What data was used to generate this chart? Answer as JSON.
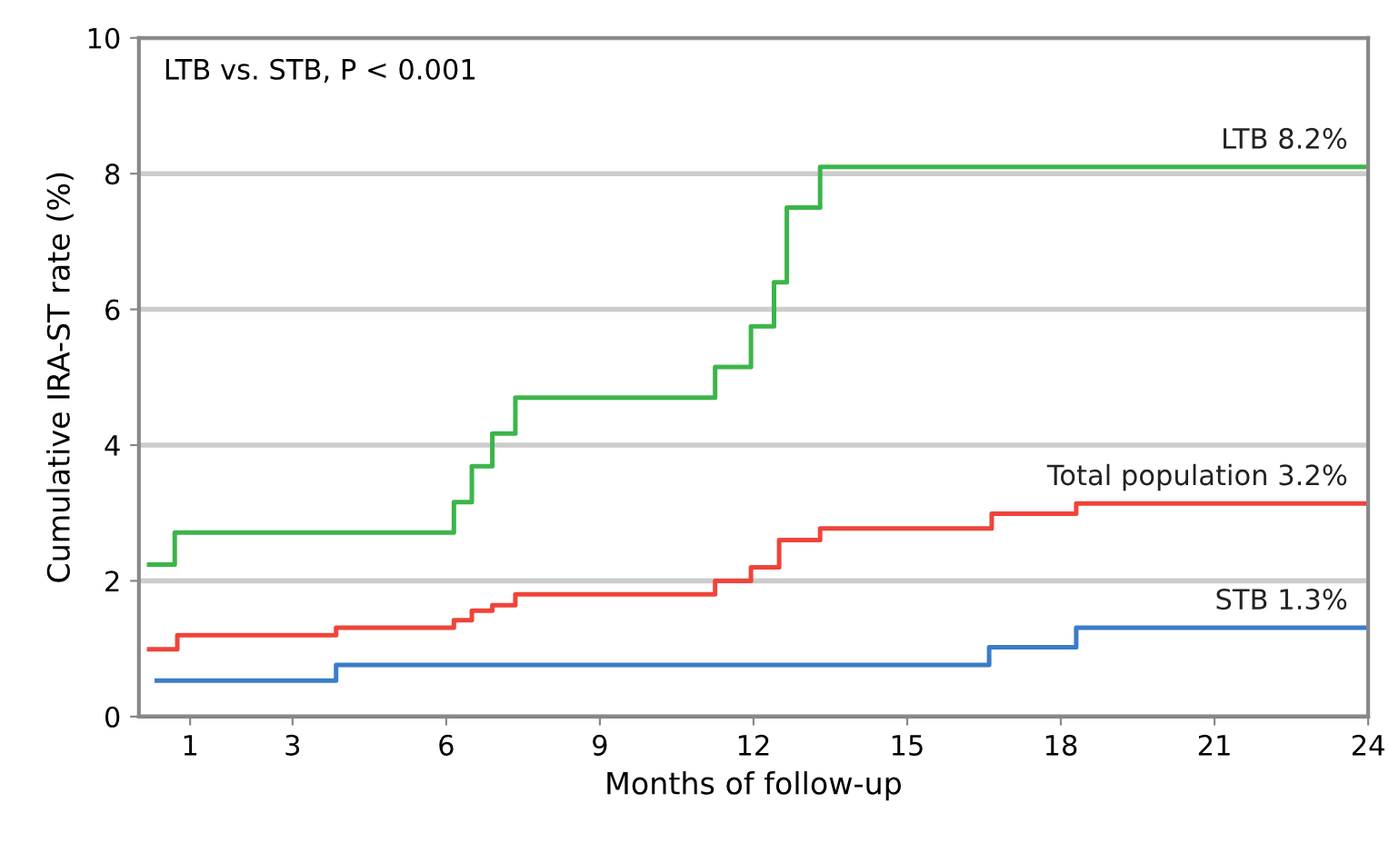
{
  "chart_data": {
    "type": "step",
    "xlabel": "Months of follow-up",
    "ylabel": "Cumulative IRA-ST rate (%)",
    "annotations": [
      "LTB vs. STB, P < 0.001"
    ],
    "series": [
      {
        "name": "LTB 8.2%",
        "color": "#3cb54a",
        "x": [
          0.2,
          0.7,
          6.15,
          6.5,
          6.9,
          7.35,
          11.25,
          11.95,
          12.4,
          12.65,
          13.3,
          24
        ],
        "values": [
          2.24,
          2.71,
          3.16,
          3.69,
          4.17,
          4.7,
          5.15,
          5.75,
          6.4,
          7.5,
          8.1,
          8.1
        ]
      },
      {
        "name": "Total population 3.2%",
        "color": "#f0443a",
        "x": [
          0.2,
          0.75,
          3.85,
          6.15,
          6.5,
          6.9,
          7.35,
          11.25,
          11.95,
          12.5,
          13.3,
          16.65,
          18.3,
          24
        ],
        "values": [
          0.99,
          1.2,
          1.31,
          1.42,
          1.56,
          1.64,
          1.8,
          2.0,
          2.2,
          2.6,
          2.77,
          2.99,
          3.14,
          3.14
        ]
      },
      {
        "name": "STB 1.3%",
        "color": "#3a7dc9",
        "x": [
          0.35,
          3.85,
          16.6,
          18.3,
          24
        ],
        "values": [
          0.53,
          0.76,
          1.02,
          1.31,
          1.31
        ]
      }
    ],
    "xlim": [
      0,
      24
    ],
    "xticks": [
      1,
      3,
      6,
      9,
      12,
      15,
      18,
      21,
      24
    ],
    "ylim": [
      0,
      10
    ],
    "yticks": [
      0,
      2,
      4,
      6,
      8,
      10
    ],
    "grid": "y",
    "legend": false
  }
}
